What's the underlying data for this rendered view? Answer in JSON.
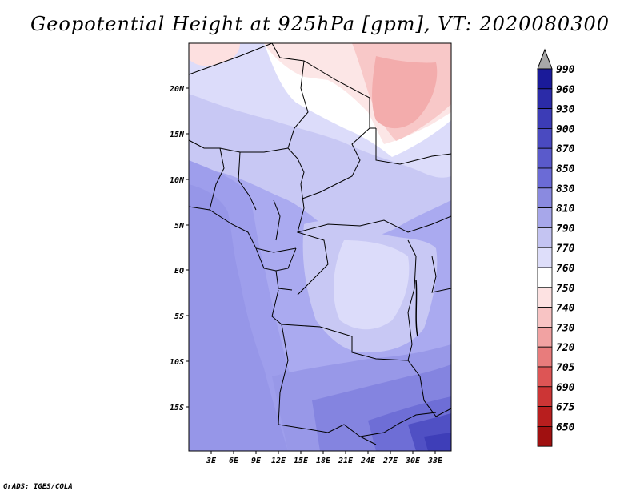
{
  "title": "Geopotential Height at 925hPa [gpm], VT: 2020080300",
  "credit": "GrADS: IGES/COLA",
  "map": {
    "lon_labels": [
      "3E",
      "6E",
      "9E",
      "12E",
      "15E",
      "18E",
      "21E",
      "24E",
      "27E",
      "30E",
      "33E"
    ],
    "lat_labels": [
      "20N",
      "15N",
      "10N",
      "5N",
      "EQ",
      "5S",
      "10S",
      "15S"
    ],
    "lon_range": [
      0,
      35
    ],
    "lat_range": [
      -20,
      25
    ]
  },
  "colorbar": {
    "levels": [
      "990",
      "960",
      "930",
      "900",
      "870",
      "850",
      "830",
      "810",
      "790",
      "770",
      "760",
      "750",
      "740",
      "730",
      "720",
      "705",
      "690",
      "675",
      "650"
    ],
    "colors": [
      "#1a1a99",
      "#2b2ba8",
      "#3c3cb6",
      "#4a4ac0",
      "#5a5acb",
      "#6b6bd6",
      "#8a8ae0",
      "#a7a7ea",
      "#c4c4f2",
      "#dedefa",
      "#ffffff",
      "#fde2e2",
      "#f8c4c4",
      "#f1a2a2",
      "#e87c7c",
      "#dd5555",
      "#cc3535",
      "#b81e1e",
      "#a01010"
    ],
    "top_arrow_color": "#a8a8a8",
    "bottom_arrow_color": "#a01010"
  }
}
